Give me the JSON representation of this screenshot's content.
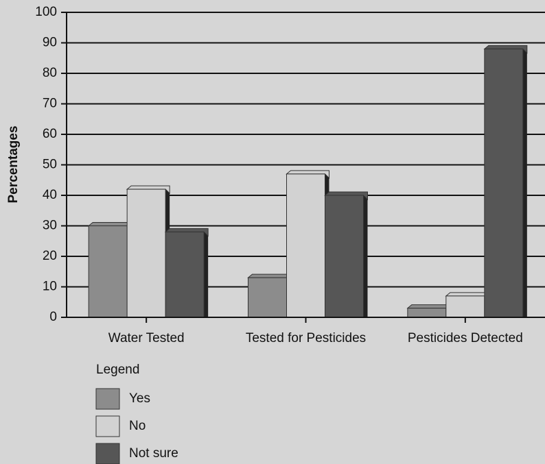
{
  "chart_data": {
    "type": "bar",
    "y_label": "Percentages",
    "categories": [
      "Water Tested",
      "Tested for Pesticides",
      "Pesticides Detected"
    ],
    "series": [
      {
        "name": "Yes",
        "color": "#8c8c8c",
        "values": [
          30,
          13,
          3
        ]
      },
      {
        "name": "No",
        "color": "#d2d2d2",
        "values": [
          42,
          47,
          7
        ]
      },
      {
        "name": "Not sure",
        "color": "#565656",
        "values": [
          28,
          40,
          88
        ]
      }
    ],
    "ylim": [
      0,
      100
    ],
    "yticks": [
      0,
      10,
      20,
      30,
      40,
      50,
      60,
      70,
      80,
      90,
      100
    ],
    "grid": true,
    "legend_title": "Legend",
    "legend": "bottom-left"
  }
}
